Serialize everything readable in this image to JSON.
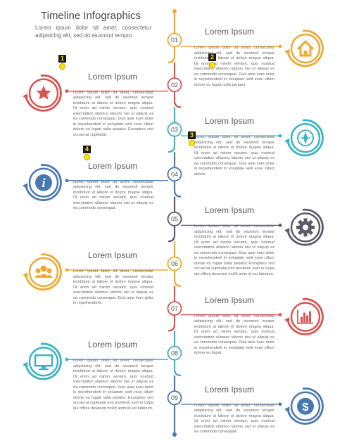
{
  "header": {
    "title": "Timeline Infographics",
    "subtitle": "Lorem ipsum dolor sit amet, consectetur adipisicing elit, sed do eiusmod tempor"
  },
  "colors": {
    "orange": "#f0a830",
    "red": "#d9534f",
    "teal": "#3bb3c3",
    "blue": "#4a78b0",
    "grey": "#5a5a6a"
  },
  "steps": [
    {
      "number": "01",
      "heading": "Lorem Ipsum",
      "icon": "home-icon",
      "color": "orange",
      "body": "Lorem ipsum dolor sit amet, consectetur adipisicing elit, sed do eiusmod tempor incididunt ut labore et dolore magna aliqua. Ut enim ad minim veniam, quis nostrud exercitation ullamco laboris nisi ut aliquip ex ea commodo consequat. Duis aute irure dolor in reprehenderit in voluptate velit esse cillum dolore eu fugiat nulla pariatur."
    },
    {
      "number": "02",
      "heading": "Lorem Ipsum",
      "icon": "star-icon",
      "color": "red",
      "body": "Lorem ipsum dolor sit amet, consectetur adipisicing elit, sed do eiusmod tempor incididunt ut labore et dolore magna aliqua. Ut enim ad minim veniam, quis nostrud exercitation ullamco laboris nisi ut aliquip ex ea commodo consequat. Duis aute irure dolor in reprehenderit in voluptate velit esse cillum dolore eu fugiat nulla pariatur. Excepteur sint occaecat cupidatat."
    },
    {
      "number": "03",
      "heading": "Lorem Ipsum",
      "icon": "compass-icon",
      "color": "teal",
      "body": "Lorem ipsum dolor sit amet, consectetur adipisicing elit, sed do eiusmod tempor incididunt ut labore et dolore magna aliqua. Ut enim ad minim veniam, quis nostrud exercitation ullamco laboris nisi ut aliquip ex ea commodo consequat. Duis aute irure dolor in reprehenderit in voluptate velit esse cillum dolore."
    },
    {
      "number": "04",
      "heading": "Lorem Ipsum",
      "icon": "info-icon",
      "color": "blue",
      "body": "Lorem ipsum dolor sit amet, consectetur adipisicing elit, sed do eiusmod tempor incididunt ut labore et dolore magna aliqua. Ut enim ad minim veniam, quis nostrud exercitation ullamco laboris nisi ut aliquip ex ea commodo consequat."
    },
    {
      "number": "05",
      "heading": "Lorem Ipsum",
      "icon": "gear-icon",
      "color": "grey",
      "body": "Lorem ipsum dolor sit amet, consectetur adipisicing elit, sed do eiusmod tempor incididunt ut labore et dolore magna aliqua. Ut enim ad minim veniam, quis nostrud exercitation ullamco laboris nisi ut aliquip ex ea commodo consequat. Duis aute irure dolor in reprehenderit in voluptate velit esse cillum dolore eu fugiat nulla pariatur. Excepteur sint occaecat cupidatat non proident, sunt in culpa qui officia deserunt mollit anim id est laborum."
    },
    {
      "number": "06",
      "heading": "Lorem Ipsum",
      "icon": "people-icon",
      "color": "orange",
      "body": "Lorem ipsum dolor sit amet, consectetur adipisicing elit, sed do eiusmod tempor incididunt ut labore et dolore magna aliqua. Ut enim ad minim veniam, quis nostrud exercitation ullamco laboris nisi ut aliquip ex ea commodo consequat. Duis aute irure dolor in reprehenderit."
    },
    {
      "number": "07",
      "heading": "Lorem Ipsum",
      "icon": "bar-chart-icon",
      "color": "red",
      "body": "Lorem ipsum dolor sit amet, consectetur adipisicing elit, sed do eiusmod tempor incididunt ut labore et dolore magna aliqua. Ut enim ad minim veniam, quis nostrud exercitation ullamco laboris nisi ut aliquip ex ea commodo consequat. Duis aute irure dolor in reprehenderit in voluptate velit esse cillum dolore eu fugiat."
    },
    {
      "number": "08",
      "heading": "Lorem Ipsum",
      "icon": "monitor-icon",
      "color": "teal",
      "body": "Lorem ipsum dolor sit amet, consectetur adipisicing elit, sed do eiusmod tempor incididunt ut labore et dolore magna aliqua. Ut enim ad minim veniam, quis nostrud exercitation ullamco laboris nisi ut aliquip ex ea commodo consequat. Duis aute irure dolor in reprehenderit in voluptate velit esse cillum dolore eu fugiat nulla pariatur. Excepteur sint occaecat cupidatat non proident, sunt in culpa qui officia deserunt mollit anim id est laborum."
    },
    {
      "number": "09",
      "heading": "Lorem Ipsum",
      "icon": "dollar-icon",
      "color": "blue",
      "body": "Lorem ipsum dolor sit amet, consectetur adipisicing elit, sed do eiusmod tempor incididunt ut labore et dolore magna aliqua. Ut enim ad minim veniam, quis nostrud exercitation ullamco laboris nisi ut aliquip ex ea commodo consequat."
    }
  ],
  "markers": [
    {
      "label": "1"
    },
    {
      "label": "2"
    },
    {
      "label": "3"
    },
    {
      "label": "4"
    }
  ]
}
